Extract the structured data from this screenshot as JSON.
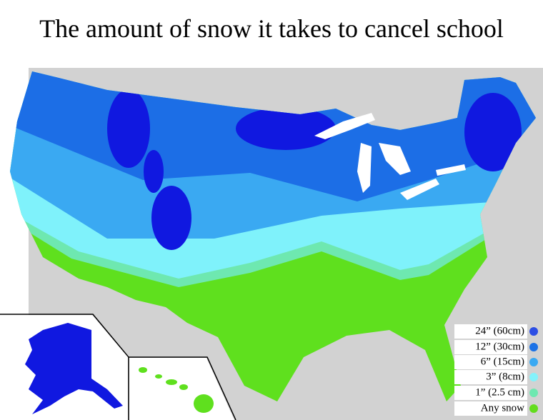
{
  "title": "The amount of snow it takes to cancel school",
  "legend": {
    "items": [
      {
        "label": "24” (60cm)",
        "color": "#2c4ee4"
      },
      {
        "label": "12” (30cm)",
        "color": "#1c72e6"
      },
      {
        "label": "6” (15cm)",
        "color": "#3aa9f2"
      },
      {
        "label": "3” (8cm)",
        "color": "#84f2fb"
      },
      {
        "label": "1” (2.5 cm)",
        "color": "#6ee8b0"
      },
      {
        "label": "Any snow",
        "color": "#63dd1e"
      }
    ]
  }
}
